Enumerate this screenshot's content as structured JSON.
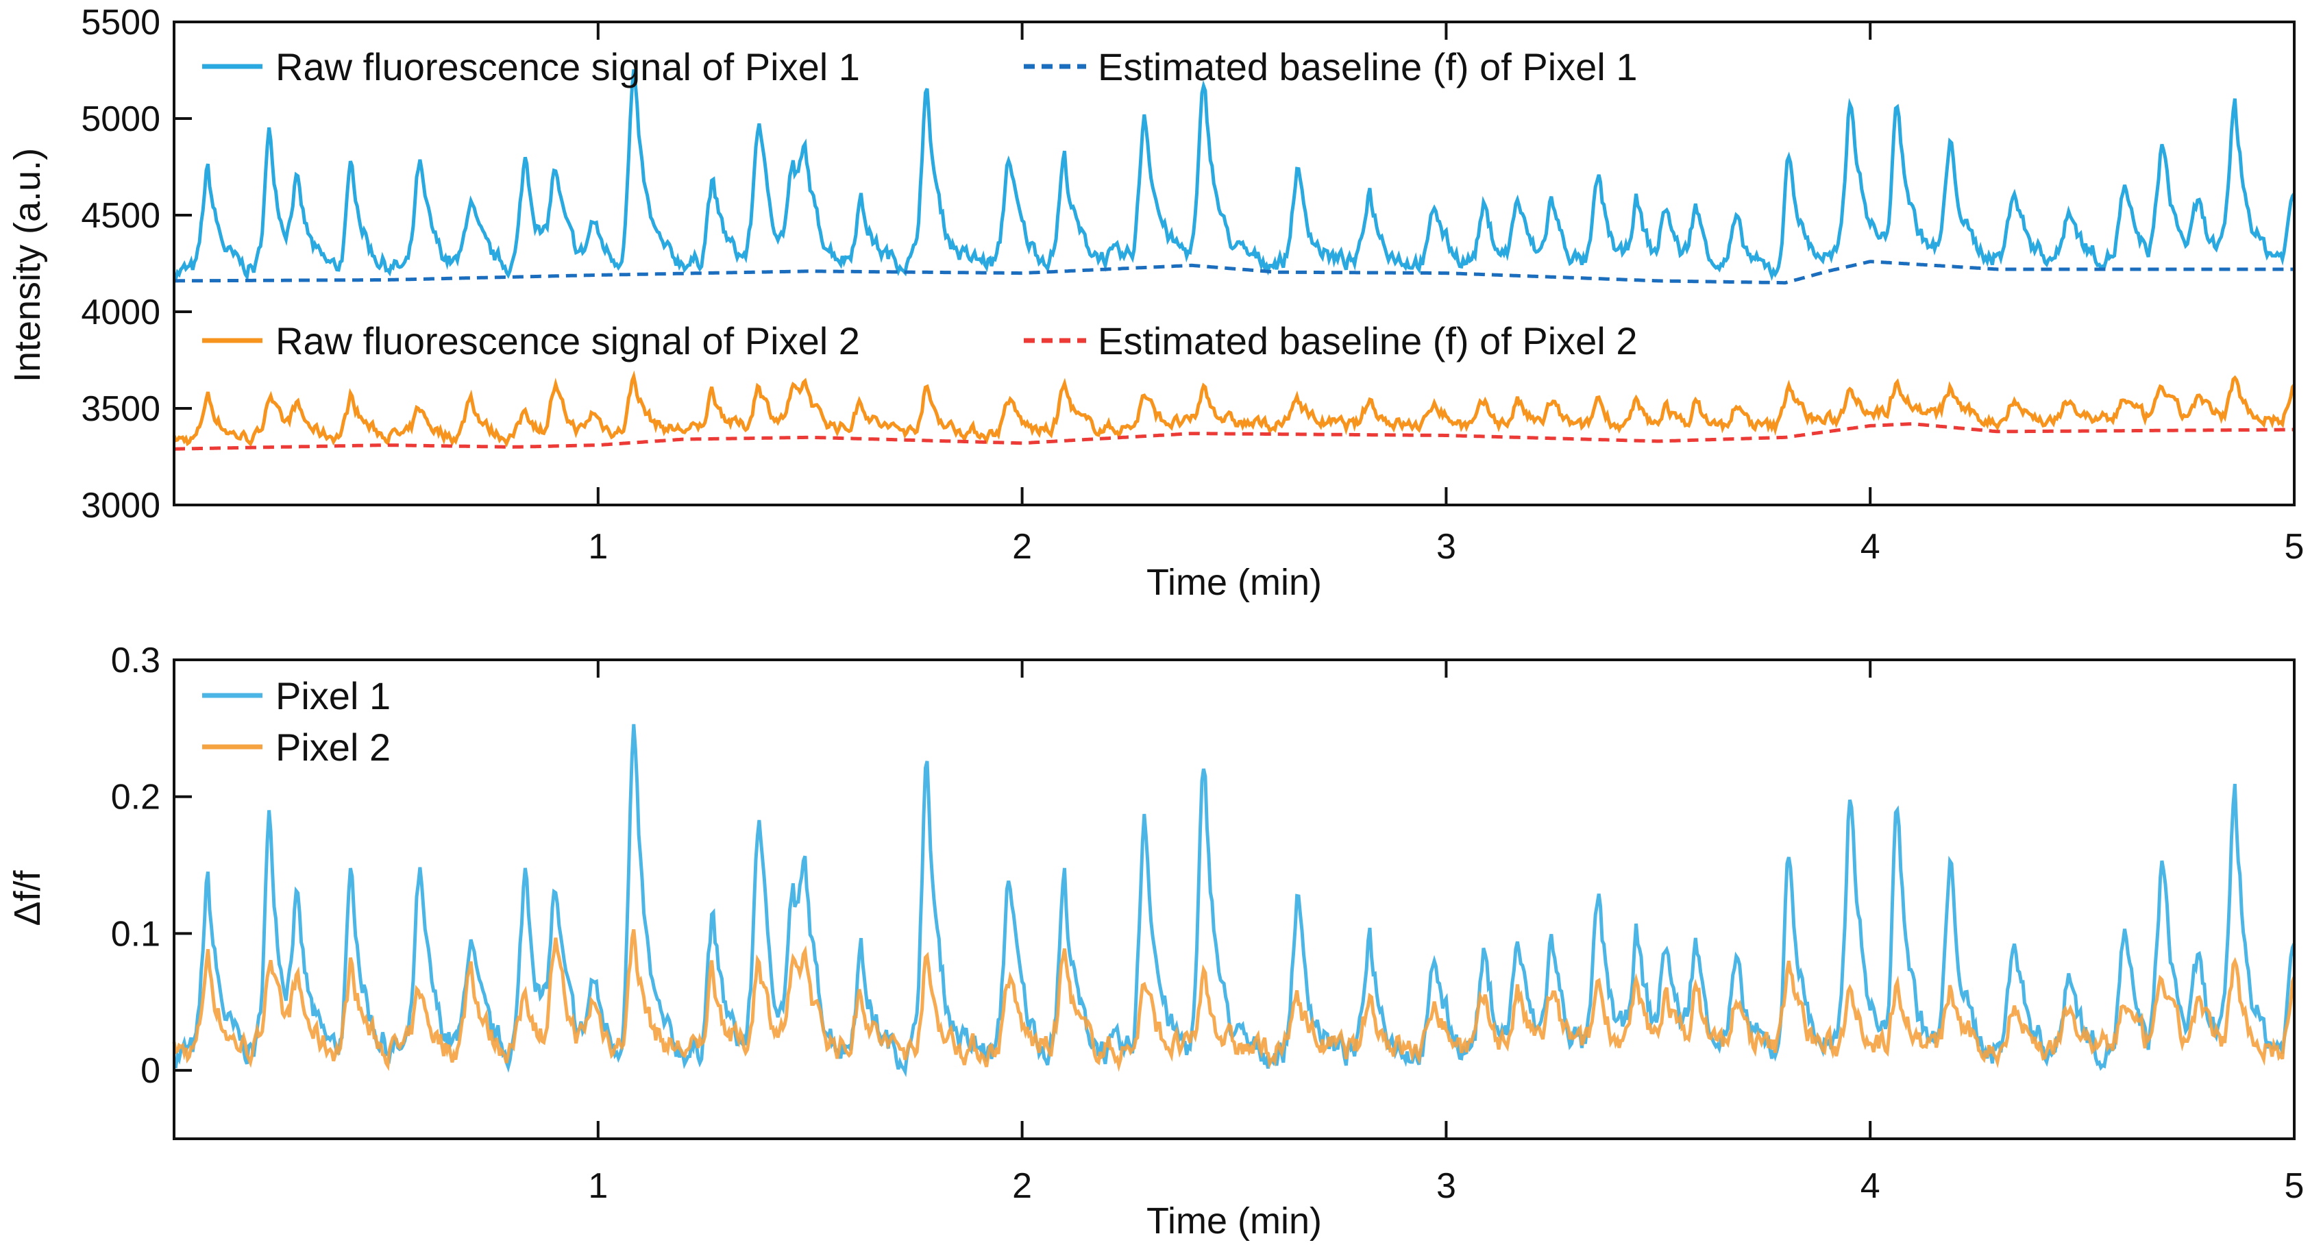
{
  "chart_data": [
    {
      "type": "line",
      "xlabel": "Time (min)",
      "ylabel": "Intensity (a.u.)",
      "xlim": [
        0,
        5
      ],
      "ylim": [
        3000,
        5500
      ],
      "xticks": [
        1,
        2,
        3,
        4,
        5
      ],
      "yticks": [
        3000,
        3500,
        4000,
        4500,
        5000,
        5500
      ],
      "grid": false,
      "legend_position": "top",
      "legend": [
        {
          "label": "Raw fluorescence signal of Pixel 1",
          "color": "#29a9df",
          "style": "solid"
        },
        {
          "label": "Estimated baseline (f) of Pixel 1",
          "color": "#1b6dbd",
          "style": "dashed"
        },
        {
          "label": "Raw fluorescence signal of Pixel 2",
          "color": "#f7941d",
          "style": "solid"
        },
        {
          "label": "Estimated baseline (f) of Pixel 2",
          "color": "#ec3b36",
          "style": "dashed"
        }
      ],
      "baseline_pixel1": {
        "x": [
          0,
          0.5,
          1.0,
          1.5,
          2.0,
          2.3,
          2.4,
          2.6,
          3.0,
          3.5,
          3.8,
          3.9,
          4.0,
          4.3,
          5.0
        ],
        "y": [
          4160,
          4165,
          4190,
          4210,
          4200,
          4230,
          4240,
          4205,
          4200,
          4160,
          4150,
          4210,
          4260,
          4220,
          4220
        ]
      },
      "baseline_pixel2": {
        "x": [
          0,
          0.5,
          0.8,
          1.0,
          1.2,
          1.5,
          2.0,
          2.4,
          3.0,
          3.5,
          3.8,
          4.0,
          4.1,
          4.3,
          5.0
        ],
        "y": [
          3290,
          3310,
          3300,
          3310,
          3340,
          3350,
          3320,
          3370,
          3360,
          3330,
          3350,
          3410,
          3420,
          3380,
          3390
        ]
      }
    },
    {
      "type": "line",
      "xlabel": "Time (min)",
      "ylabel": "Δf/f",
      "xlim": [
        0,
        5
      ],
      "ylim": [
        -0.05,
        0.3
      ],
      "xticks": [
        1,
        2,
        3,
        4,
        5
      ],
      "yticks": [
        0,
        0.1,
        0.2,
        0.3
      ],
      "grid": false,
      "legend_position": "top-left",
      "legend": [
        {
          "label": "Pixel 1",
          "color": "#4bb6e6"
        },
        {
          "label": "Pixel 2",
          "color": "#f5a240"
        }
      ],
      "peaks": {
        "time": [
          0.08,
          0.226,
          0.29,
          0.42,
          0.58,
          0.7,
          0.83,
          0.9,
          0.99,
          1.085,
          1.27,
          1.38,
          1.46,
          1.49,
          1.62,
          1.775,
          1.97,
          2.1,
          2.29,
          2.43,
          2.65,
          2.82,
          2.975,
          3.09,
          3.17,
          3.25,
          3.36,
          3.45,
          3.52,
          3.59,
          3.685,
          3.81,
          3.955,
          4.065,
          4.19,
          4.34,
          4.47,
          4.6,
          4.69,
          4.775,
          4.86,
          5.0
        ],
        "pixel1": [
          0.125,
          0.17,
          0.095,
          0.13,
          0.13,
          0.085,
          0.135,
          0.11,
          0.05,
          0.23,
          0.1,
          0.175,
          0.105,
          0.095,
          0.075,
          0.21,
          0.135,
          0.125,
          0.18,
          0.21,
          0.115,
          0.09,
          0.07,
          0.07,
          0.08,
          0.08,
          0.11,
          0.085,
          0.075,
          0.075,
          0.06,
          0.145,
          0.195,
          0.175,
          0.135,
          0.09,
          0.065,
          0.085,
          0.14,
          0.06,
          0.19,
          0.08
        ],
        "pixel2": [
          0.07,
          0.07,
          0.045,
          0.065,
          0.045,
          0.065,
          0.045,
          0.075,
          0.035,
          0.085,
          0.06,
          0.07,
          0.05,
          0.05,
          0.045,
          0.065,
          0.055,
          0.07,
          0.05,
          0.055,
          0.045,
          0.04,
          0.04,
          0.035,
          0.04,
          0.04,
          0.05,
          0.04,
          0.04,
          0.04,
          0.035,
          0.07,
          0.055,
          0.055,
          0.045,
          0.04,
          0.035,
          0.04,
          0.055,
          0.035,
          0.06,
          0.05
        ]
      }
    }
  ]
}
